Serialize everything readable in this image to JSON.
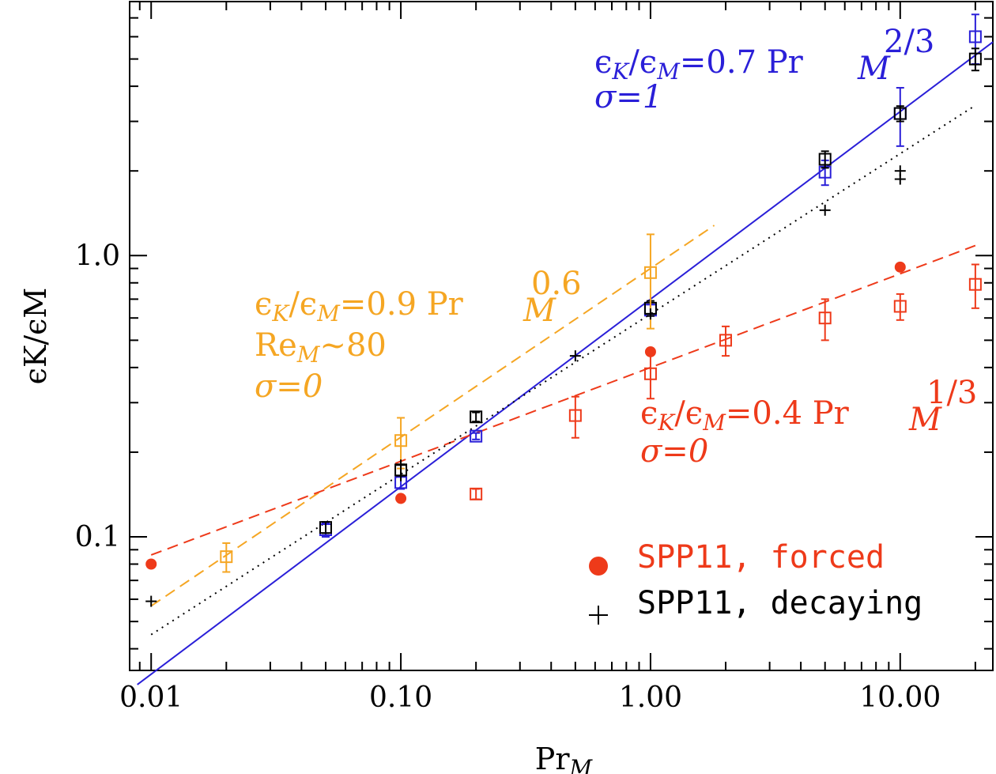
{
  "chart_data": {
    "type": "scatter",
    "x_scale": "log",
    "y_scale": "log",
    "xlim": [
      0.0082,
      23.5
    ],
    "ylim": [
      0.0335,
      8.0
    ],
    "xlabel": {
      "base": "Pr",
      "sub": "M"
    },
    "ylabel": {
      "text": "ϵK/ϵM"
    },
    "x_ticks": [
      {
        "value": 0.01,
        "label": "0.01"
      },
      {
        "value": 0.1,
        "label": "0.10"
      },
      {
        "value": 1,
        "label": "1.00"
      },
      {
        "value": 10,
        "label": "10.00"
      }
    ],
    "y_ticks": [
      {
        "value": 0.1,
        "label": "0.1"
      },
      {
        "value": 1,
        "label": "1.0"
      }
    ],
    "grid": false,
    "colors": {
      "blue": "#2a1fd8",
      "orange": "#f5a623",
      "red": "#ee3a1a",
      "black": "#000000"
    },
    "series": [
      {
        "key": "blue_squares",
        "marker": "square",
        "color": "blue",
        "points": [
          {
            "x": 0.05,
            "y": 0.106,
            "err": [
              0.006,
              0.006
            ]
          },
          {
            "x": 0.1,
            "y": 0.156,
            "err": [
              0.008,
              0.008
            ]
          },
          {
            "x": 0.2,
            "y": 0.228,
            "err": [
              0.006,
              0.006
            ]
          },
          {
            "x": 1.0,
            "y": 0.64,
            "err": [
              0.03,
              0.03
            ]
          },
          {
            "x": 5.0,
            "y": 1.98,
            "err": [
              0.2,
              0.2
            ]
          },
          {
            "x": 10.0,
            "y": 3.2,
            "err": [
              0.75,
              0.75
            ]
          },
          {
            "x": 20.0,
            "y": 6.0,
            "err": [
              1.2,
              1.2
            ]
          }
        ]
      },
      {
        "key": "black_squares",
        "marker": "square",
        "color": "black",
        "points": [
          {
            "x": 0.05,
            "y": 0.108,
            "err": [
              0.005,
              0.005
            ]
          },
          {
            "x": 0.1,
            "y": 0.173,
            "err": [
              0.008,
              0.008
            ]
          },
          {
            "x": 0.2,
            "y": 0.267,
            "err": [
              0.01,
              0.01
            ]
          },
          {
            "x": 1.0,
            "y": 0.65,
            "err": [
              0.04,
              0.04
            ]
          },
          {
            "x": 5.0,
            "y": 2.2,
            "err": [
              0.15,
              0.15
            ]
          },
          {
            "x": 10.0,
            "y": 3.2,
            "err": [
              0.2,
              0.2
            ]
          },
          {
            "x": 20.0,
            "y": 5.0,
            "err": [
              0.45,
              0.45
            ]
          }
        ]
      },
      {
        "key": "orange_squares",
        "marker": "square",
        "color": "orange",
        "points": [
          {
            "x": 0.02,
            "y": 0.085,
            "err": [
              0.01,
              0.01
            ]
          },
          {
            "x": 0.1,
            "y": 0.22,
            "err": [
              0.045,
              0.045
            ]
          },
          {
            "x": 1.0,
            "y": 0.87,
            "err": [
              0.32,
              0.32
            ]
          }
        ]
      },
      {
        "key": "red_squares",
        "marker": "square",
        "color": "red",
        "points": [
          {
            "x": 0.2,
            "y": 0.142,
            "err": [
              0.006,
              0.006
            ]
          },
          {
            "x": 0.5,
            "y": 0.27,
            "err": [
              0.045,
              0.045
            ]
          },
          {
            "x": 1.0,
            "y": 0.38,
            "err": [
              0.07,
              0.07
            ]
          },
          {
            "x": 2.0,
            "y": 0.5,
            "err": [
              0.06,
              0.06
            ]
          },
          {
            "x": 5.0,
            "y": 0.6,
            "err": [
              0.1,
              0.1
            ]
          },
          {
            "x": 10.0,
            "y": 0.66,
            "err": [
              0.07,
              0.07
            ]
          },
          {
            "x": 20.0,
            "y": 0.79,
            "err": [
              0.14,
              0.14
            ]
          }
        ]
      },
      {
        "key": "spp11_forced",
        "name": "SPP11, forced",
        "marker": "circle",
        "color": "red",
        "points": [
          {
            "x": 0.01,
            "y": 0.08
          },
          {
            "x": 0.1,
            "y": 0.137
          },
          {
            "x": 1.0,
            "y": 0.455
          },
          {
            "x": 10.0,
            "y": 0.91
          }
        ]
      },
      {
        "key": "spp11_decaying",
        "name": "SPP11, decaying",
        "marker": "plus",
        "color": "black",
        "points": [
          {
            "x": 0.01,
            "y": 0.059
          },
          {
            "x": 0.1,
            "y": 0.18
          },
          {
            "x": 0.1,
            "y": 0.165
          },
          {
            "x": 0.5,
            "y": 0.44
          },
          {
            "x": 1.0,
            "y": 0.62
          },
          {
            "x": 5.0,
            "y": 1.45
          },
          {
            "x": 10.0,
            "y": 2.0
          },
          {
            "x": 10.0,
            "y": 1.87
          }
        ]
      }
    ],
    "fits": [
      {
        "key": "fit_blue",
        "color": "blue",
        "style": "solid",
        "coef": 0.7,
        "exponent": 0.6667,
        "x_range": [
          0.0088,
          23.5
        ]
      },
      {
        "key": "fit_orange",
        "color": "orange",
        "style": "dashed",
        "coef": 0.9,
        "exponent": 0.6,
        "x_range": [
          0.01,
          1.8
        ]
      },
      {
        "key": "fit_red",
        "color": "red",
        "style": "dashed",
        "coef": 0.4,
        "exponent": 0.3333,
        "x_range": [
          0.01,
          20.0
        ]
      },
      {
        "key": "fit_black",
        "color": "black",
        "style": "dotted",
        "coef": 0.62,
        "exponent": 0.57,
        "x_range": [
          0.01,
          20.0
        ]
      }
    ],
    "annotations": {
      "blue": {
        "coef_text": "=0.7 Pr",
        "exp_text": "2/3",
        "sigma_text": "σ=1"
      },
      "orange": {
        "coef_text": "=0.9 Pr",
        "exp_text": "0.6",
        "re_text": "Re",
        "re_value": "~80",
        "sigma_text": "σ=0"
      },
      "red": {
        "coef_text": "=0.4 Pr",
        "exp_text": "1/3",
        "sigma_text": "σ=0"
      }
    },
    "legend": {
      "placement": "bottom-right",
      "entries": [
        {
          "label": "SPP11, forced",
          "marker": "circle",
          "color": "red"
        },
        {
          "label": "SPP11, decaying",
          "marker": "plus",
          "color": "black"
        }
      ]
    }
  }
}
